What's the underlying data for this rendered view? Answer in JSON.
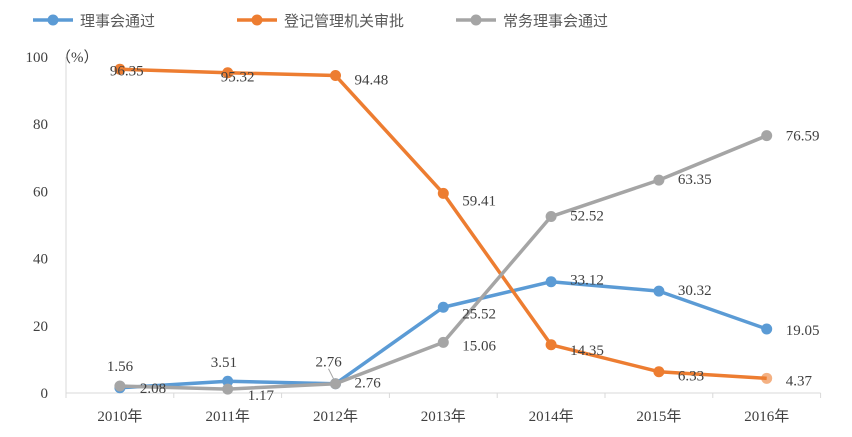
{
  "chart_data": {
    "type": "line",
    "title": "",
    "ylabel": "（%）",
    "xlabel": "",
    "ylim": [
      0,
      100
    ],
    "yticks": [
      "0",
      "20",
      "40",
      "60",
      "80",
      "100"
    ],
    "categories": [
      "2010年",
      "2011年",
      "2012年",
      "2013年",
      "2014年",
      "2015年",
      "2016年"
    ],
    "legend_position": "top",
    "grid": false,
    "series": [
      {
        "name": "理事会通过",
        "color": "#5B9BD5",
        "values": [
          1.56,
          3.51,
          2.76,
          25.52,
          33.12,
          30.32,
          19.05
        ]
      },
      {
        "name": "登记管理机关审批",
        "color": "#ED7D31",
        "values": [
          96.35,
          95.32,
          94.48,
          59.41,
          14.35,
          6.33,
          4.37
        ]
      },
      {
        "name": "常务理事会通过",
        "color": "#A5A5A5",
        "values": [
          2.08,
          1.17,
          2.76,
          15.06,
          52.52,
          63.35,
          76.59
        ]
      }
    ]
  }
}
